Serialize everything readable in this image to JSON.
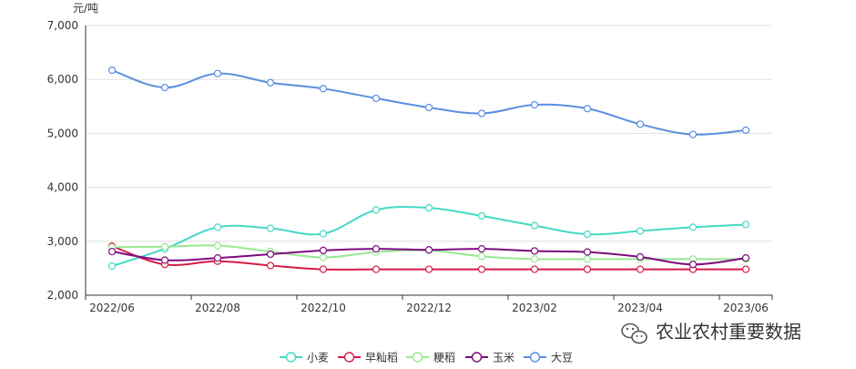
{
  "chart_data": {
    "type": "line",
    "ylabel": "元/吨",
    "ylim": [
      2000,
      7000
    ],
    "y_ticks": [
      "2,000",
      "3,000",
      "4,000",
      "5,000",
      "6,000",
      "7,000"
    ],
    "y_tick_values": [
      2000,
      3000,
      4000,
      5000,
      6000,
      7000
    ],
    "x": [
      "2022/06",
      "2022/07",
      "2022/08",
      "2022/09",
      "2022/10",
      "2022/11",
      "2022/12",
      "2023/01",
      "2023/02",
      "2023/03",
      "2023/04",
      "2023/05",
      "2023/06"
    ],
    "x_tick_labels": [
      "2022/06",
      "2022/08",
      "2022/10",
      "2022/12",
      "2023/02",
      "2023/04",
      "2023/06"
    ],
    "grid": true,
    "legend_position": "bottom",
    "series": [
      {
        "name": "小麦",
        "color": "#44d9c6",
        "values": [
          2540,
          2860,
          3260,
          3240,
          3140,
          3580,
          3620,
          3470,
          3290,
          3130,
          3190,
          3260,
          3310
        ]
      },
      {
        "name": "早籼稻",
        "color": "#d51a4a",
        "values": [
          2910,
          2570,
          2630,
          2550,
          2480,
          2480,
          2480,
          2480,
          2480,
          2480,
          2480,
          2480,
          2480
        ]
      },
      {
        "name": "粳稻",
        "color": "#98e891",
        "values": [
          2890,
          2900,
          2920,
          2810,
          2700,
          2800,
          2830,
          2720,
          2670,
          2670,
          2670,
          2670,
          2670
        ]
      },
      {
        "name": "玉米",
        "color": "#7e0b80",
        "values": [
          2810,
          2650,
          2690,
          2760,
          2830,
          2860,
          2840,
          2860,
          2820,
          2800,
          2710,
          2570,
          2690
        ]
      },
      {
        "name": "大豆",
        "color": "#5b8fe0",
        "values": [
          6170,
          5850,
          6110,
          5940,
          5830,
          5650,
          5480,
          5370,
          5530,
          5460,
          5170,
          4980,
          5060
        ]
      }
    ]
  },
  "watermark": {
    "text": "农业农村重要数据",
    "icon": "wechat-icon"
  }
}
